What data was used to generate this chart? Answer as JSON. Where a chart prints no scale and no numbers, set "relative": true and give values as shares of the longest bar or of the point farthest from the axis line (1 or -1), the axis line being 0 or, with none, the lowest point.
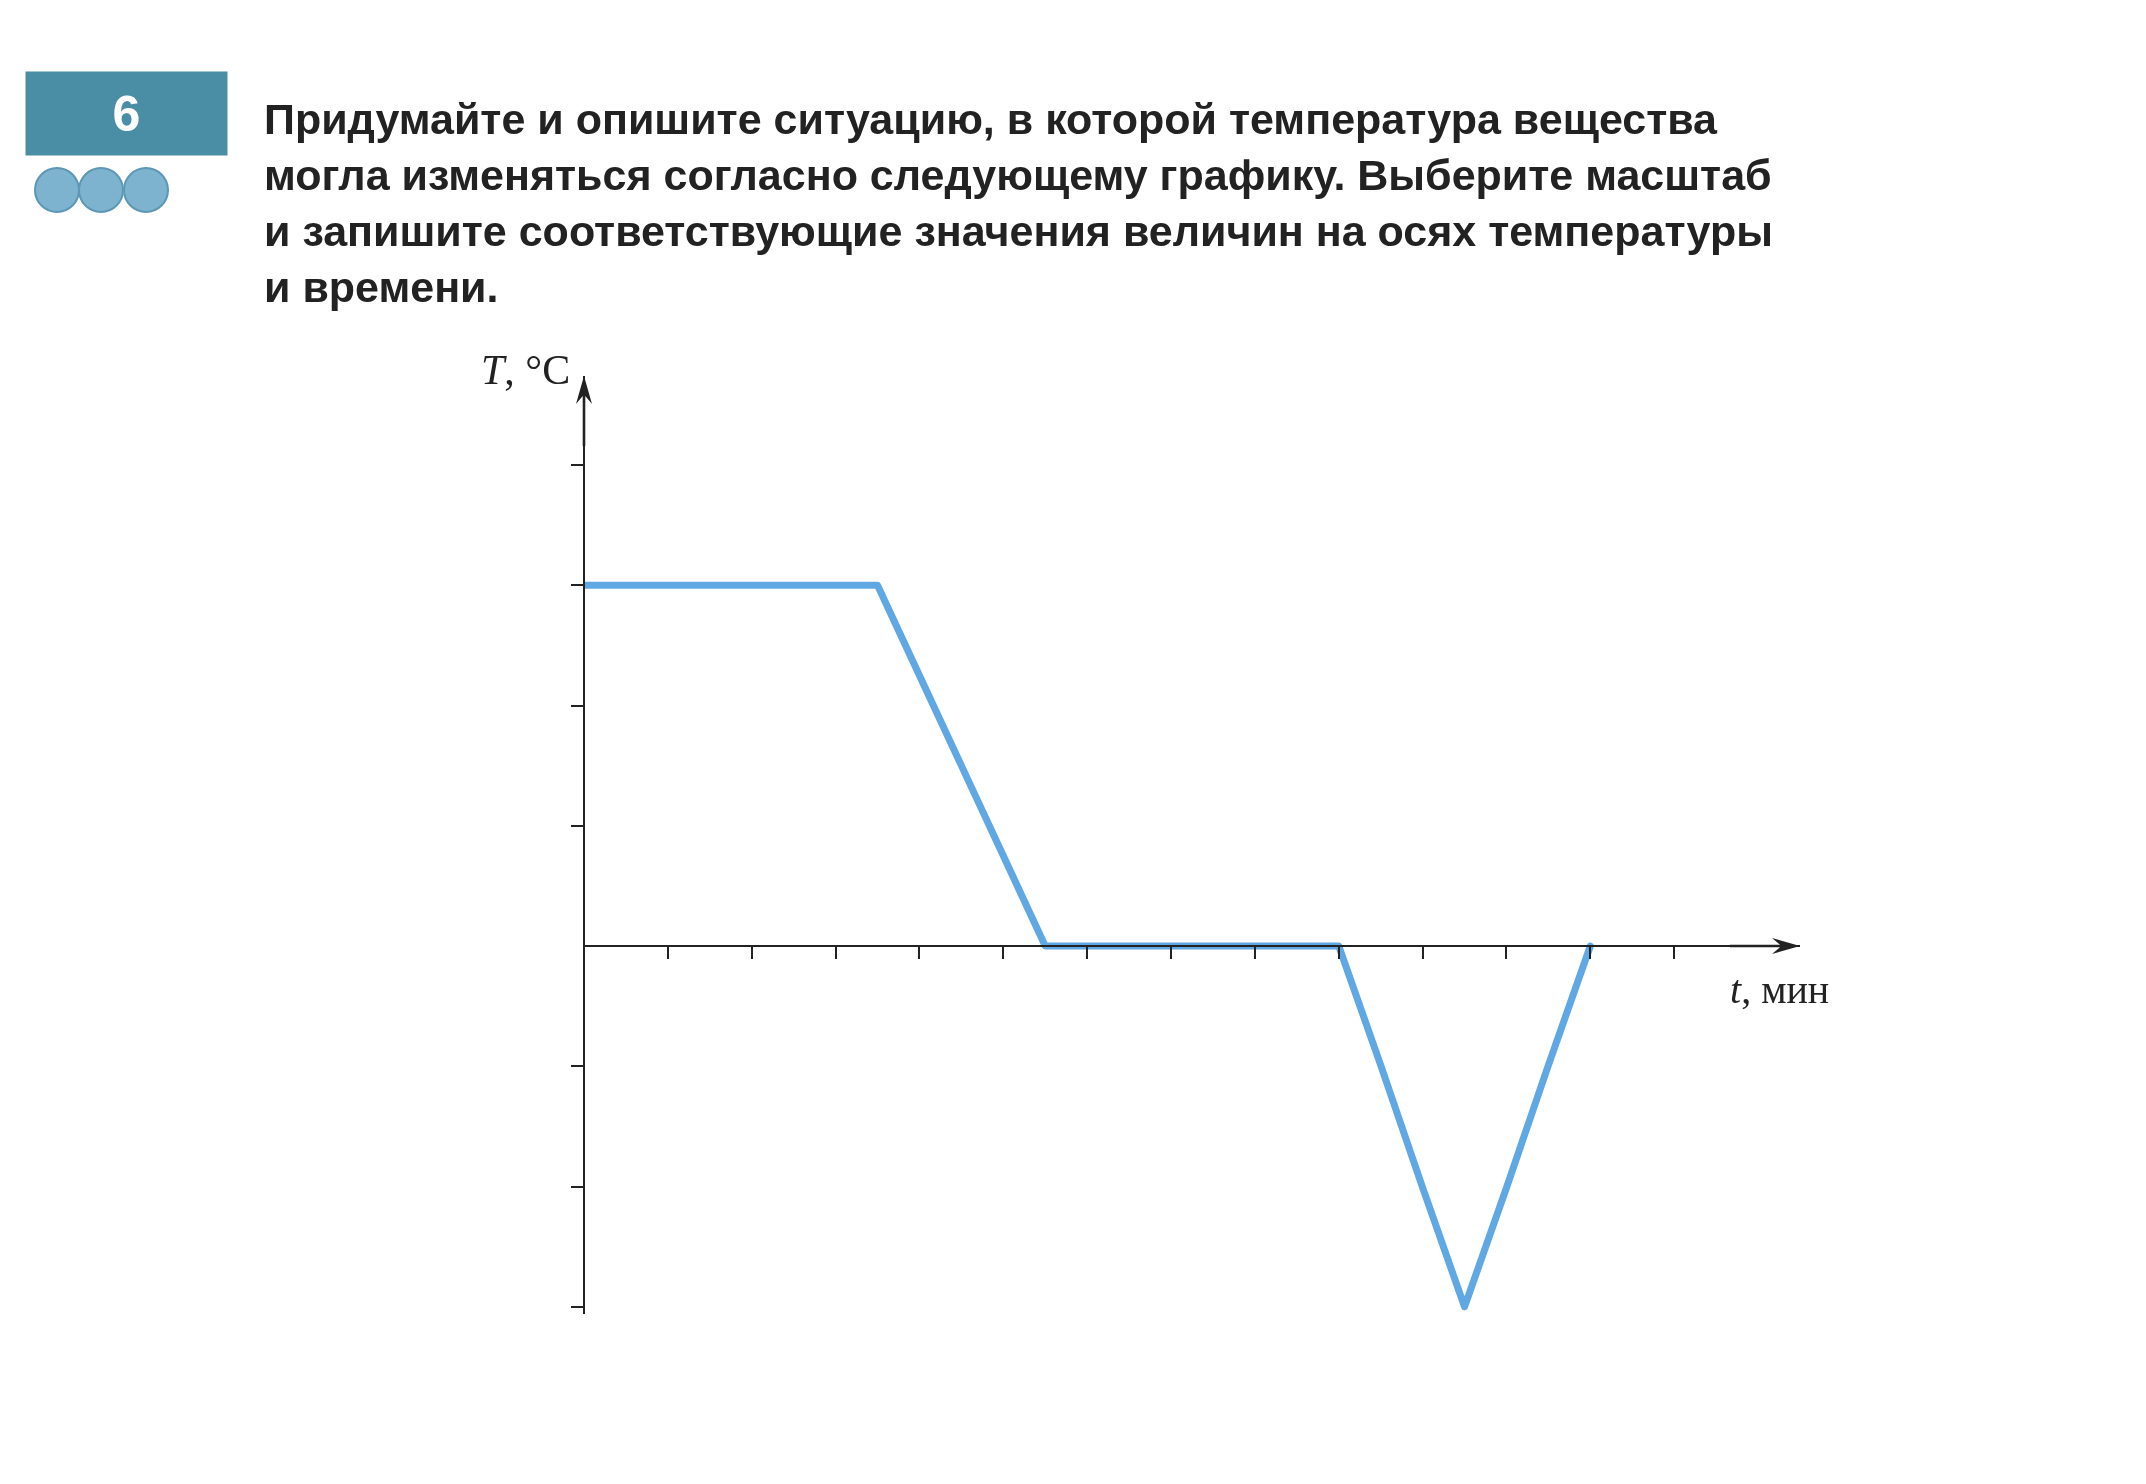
{
  "chart_data": {
    "type": "line",
    "title": "Придумайте и опишите ситуацию, в которой температура вещества могла изменяться согласно следующему графику. Выберите масштаб и запишите соответствующие значения величин на осях температуры и времени.",
    "xlabel": "t, мин",
    "ylabel": "T, °C",
    "annotations": [
      "6"
    ],
    "relative": true,
    "categories": [
      null,
      null,
      null,
      null,
      null,
      null,
      null,
      null,
      null,
      null,
      null,
      null,
      null,
      null,
      null,
      null,
      null,
      null,
      null,
      null,
      null,
      null,
      null,
      null,
      null,
      null,
      null,
      null,
      null,
      null
    ],
    "series": [
      {
        "color": "#5fa8e3",
        "values": [
          1,
          1,
          1,
          1,
          1,
          1,
          1,
          1,
          0.75,
          0.5,
          0.25,
          0,
          0,
          0,
          0,
          0,
          0,
          0,
          0,
          -0.33,
          -0.67,
          -1,
          -0.67,
          -0.33,
          0,
          null,
          null,
          null,
          null,
          null
        ]
      }
    ]
  }
}
